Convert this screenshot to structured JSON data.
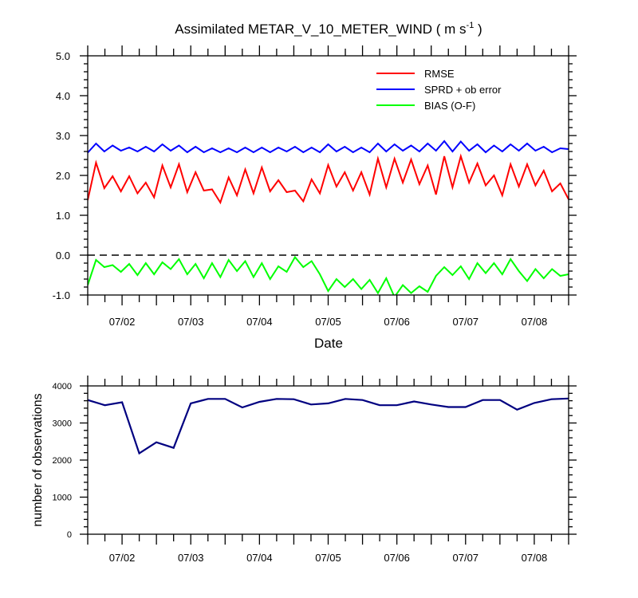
{
  "chart_data": [
    {
      "type": "line",
      "title": "Assimilated METAR_V_10_METER_WIND ( m s",
      "title_unit_superscript": "-1",
      "title_close": " )",
      "xlabel": "Date",
      "ylabel": "",
      "ylim": [
        -1.0,
        5.0
      ],
      "y_ticks": [
        "-1.0",
        "0.0",
        "1.0",
        "2.0",
        "3.0",
        "4.0",
        "5.0"
      ],
      "x_tick_labels": [
        "07/02",
        "07/03",
        "07/04",
        "07/05",
        "07/06",
        "07/07",
        "07/08"
      ],
      "zero_line": "dashed",
      "legend_position": "top-right",
      "series": [
        {
          "name": "RMSE",
          "color": "#ff0000",
          "values": [
            1.38,
            2.32,
            1.68,
            1.98,
            1.6,
            1.98,
            1.55,
            1.82,
            1.45,
            2.25,
            1.7,
            2.28,
            1.58,
            2.08,
            1.62,
            1.65,
            1.32,
            1.95,
            1.5,
            2.15,
            1.55,
            2.2,
            1.6,
            1.88,
            1.58,
            1.62,
            1.35,
            1.9,
            1.55,
            2.26,
            1.72,
            2.08,
            1.62,
            2.08,
            1.52,
            2.42,
            1.7,
            2.42,
            1.82,
            2.4,
            1.78,
            2.25,
            1.52,
            2.48,
            1.7,
            2.48,
            1.82,
            2.3,
            1.75,
            2.0,
            1.5,
            2.28,
            1.72,
            2.28,
            1.75,
            2.12,
            1.6,
            1.8,
            1.4
          ]
        },
        {
          "name": "SPRD + ob error",
          "color": "#0000ff",
          "values": [
            2.57,
            2.8,
            2.6,
            2.75,
            2.62,
            2.7,
            2.6,
            2.72,
            2.6,
            2.78,
            2.62,
            2.75,
            2.58,
            2.72,
            2.58,
            2.68,
            2.58,
            2.68,
            2.58,
            2.7,
            2.58,
            2.7,
            2.58,
            2.7,
            2.6,
            2.72,
            2.58,
            2.7,
            2.58,
            2.78,
            2.6,
            2.72,
            2.58,
            2.7,
            2.58,
            2.8,
            2.6,
            2.78,
            2.62,
            2.75,
            2.6,
            2.8,
            2.62,
            2.86,
            2.6,
            2.85,
            2.62,
            2.78,
            2.58,
            2.75,
            2.6,
            2.78,
            2.62,
            2.8,
            2.62,
            2.72,
            2.58,
            2.68,
            2.66
          ]
        },
        {
          "name": "BIAS (O-F)",
          "color": "#00ff00",
          "values": [
            -0.75,
            -0.12,
            -0.3,
            -0.25,
            -0.42,
            -0.22,
            -0.5,
            -0.2,
            -0.48,
            -0.18,
            -0.35,
            -0.1,
            -0.48,
            -0.22,
            -0.58,
            -0.2,
            -0.55,
            -0.12,
            -0.4,
            -0.15,
            -0.55,
            -0.2,
            -0.6,
            -0.28,
            -0.42,
            -0.05,
            -0.3,
            -0.15,
            -0.48,
            -0.9,
            -0.6,
            -0.8,
            -0.6,
            -0.85,
            -0.62,
            -0.95,
            -0.58,
            -1.05,
            -0.75,
            -0.95,
            -0.78,
            -0.92,
            -0.52,
            -0.3,
            -0.5,
            -0.28,
            -0.6,
            -0.2,
            -0.45,
            -0.2,
            -0.48,
            -0.1,
            -0.4,
            -0.65,
            -0.35,
            -0.58,
            -0.35,
            -0.52,
            -0.48
          ]
        }
      ]
    },
    {
      "type": "line",
      "title": "",
      "xlabel": "",
      "ylabel": "number of observations",
      "ylim": [
        0,
        4000
      ],
      "y_ticks": [
        "0",
        "1000",
        "2000",
        "3000",
        "4000"
      ],
      "x_tick_labels": [
        "07/02",
        "07/03",
        "07/04",
        "07/05",
        "07/06",
        "07/07",
        "07/08"
      ],
      "series": [
        {
          "name": "observations",
          "color": "#000080",
          "values": [
            3620,
            3480,
            3560,
            2180,
            2480,
            2330,
            3530,
            3650,
            3650,
            3420,
            3570,
            3650,
            3640,
            3500,
            3530,
            3650,
            3620,
            3480,
            3480,
            3580,
            3500,
            3430,
            3430,
            3620,
            3620,
            3360,
            3540,
            3640,
            3660
          ]
        }
      ]
    }
  ]
}
